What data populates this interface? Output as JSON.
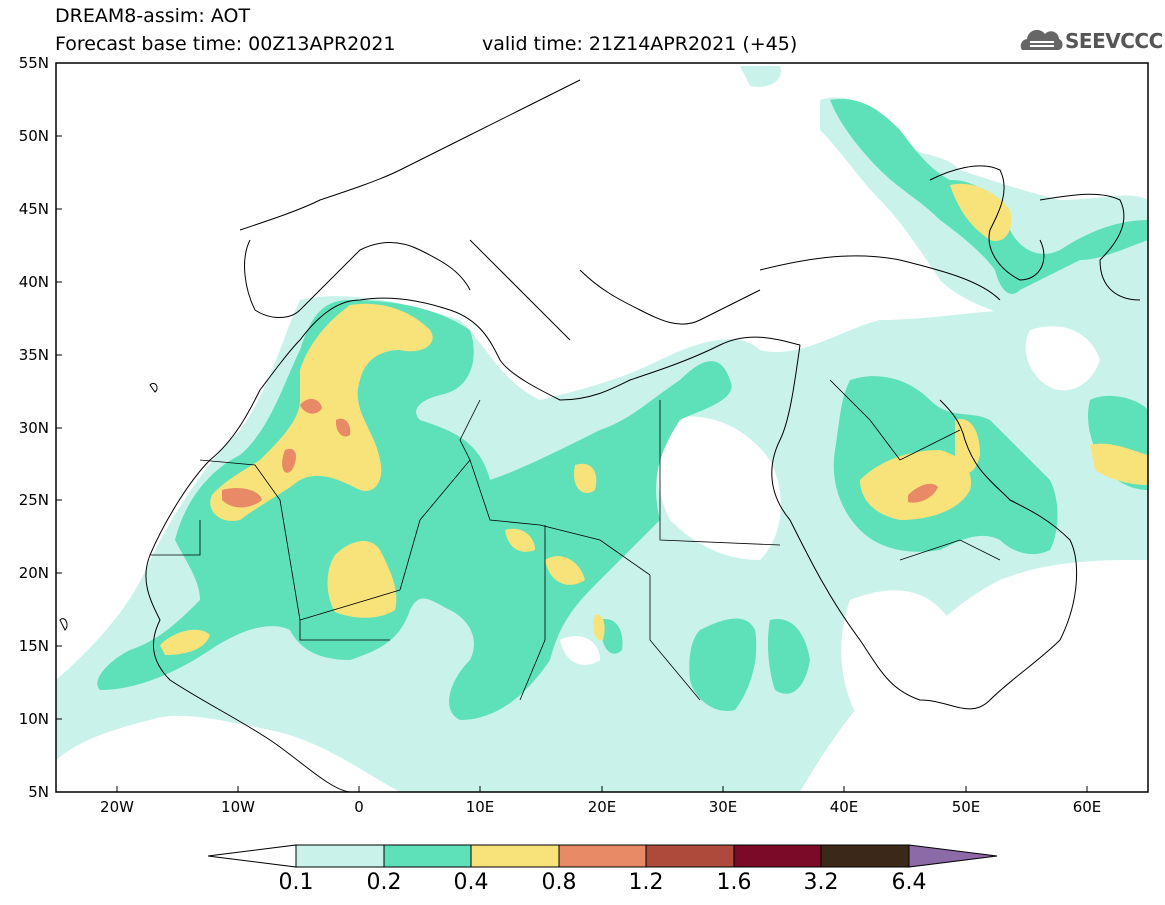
{
  "header": {
    "title": "DREAM8-assim: AOT",
    "base_time": "Forecast base time: 00Z13APR2021",
    "valid_time": "valid time: 21Z14APR2021 (+45)",
    "logo_text": "SEEVCCC"
  },
  "axes": {
    "lat_labels": [
      "55N",
      "50N",
      "45N",
      "40N",
      "35N",
      "30N",
      "25N",
      "20N",
      "15N",
      "10N",
      "5N"
    ],
    "lon_labels": [
      "20W",
      "10W",
      "0",
      "10E",
      "20E",
      "30E",
      "40E",
      "50E",
      "60E"
    ]
  },
  "colorbar": {
    "labels": [
      "0.1",
      "0.2",
      "0.4",
      "0.8",
      "1.2",
      "1.6",
      "3.2",
      "6.4"
    ],
    "colors": [
      "#ffffff",
      "#c9f3ea",
      "#5ee0b8",
      "#f8e37a",
      "#e98a66",
      "#ad4a3b",
      "#7a0a25",
      "#3c2818",
      "#8c6aa8"
    ]
  },
  "colors": {
    "level1": "#c9f3ea",
    "level2": "#5ee0b8",
    "level3": "#f8e37a",
    "level4": "#e98a66"
  }
}
